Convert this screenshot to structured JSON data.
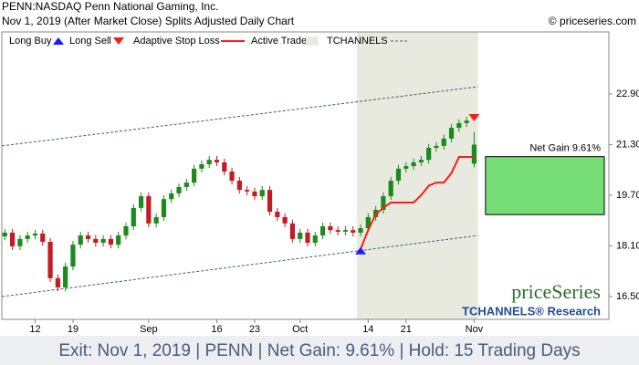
{
  "header": {
    "title": "PENN:NASDAQ Penn National Gaming, Inc.",
    "subtitle": "Nov 1, 2019 (After Market Close)  Splits Adjusted Daily Chart",
    "copyright": "© priceseries.com"
  },
  "legend": {
    "long_buy": "Long Buy",
    "long_sell": "Long Sell",
    "stop_loss": "Adaptive Stop Loss",
    "active_trade": "Active Trade",
    "channels": "TCHANNELS"
  },
  "watermark": {
    "brand": "priceSeries",
    "research": "TCHANNELS® Research"
  },
  "footer": "Exit: Nov 1, 2019 | PENN | Net Gain: 9.61% | Hold: 15 Trading Days",
  "chart_data": {
    "type": "candlestick",
    "xlim": [
      -0.4,
      79.8
    ],
    "xticks": [
      {
        "value": 4,
        "label": "12"
      },
      {
        "value": 9,
        "label": "19"
      },
      {
        "value": 19,
        "label": "Sep"
      },
      {
        "value": 28,
        "label": "16"
      },
      {
        "value": 33,
        "label": "23"
      },
      {
        "value": 39,
        "label": "Oct"
      },
      {
        "value": 48,
        "label": "14"
      },
      {
        "value": 53,
        "label": "21"
      },
      {
        "value": 62,
        "label": "Nov"
      }
    ],
    "ylim": [
      15.78,
      24.86
    ],
    "yticks": [
      {
        "value": 16.5,
        "label": "16.50"
      },
      {
        "value": 18.1,
        "label": "18.10"
      },
      {
        "value": 19.7,
        "label": "19.70"
      },
      {
        "value": 21.3,
        "label": "21.30"
      },
      {
        "value": 22.9,
        "label": "22.90"
      }
    ],
    "up_color": "#1c8a1c",
    "down_color": "#c41a24",
    "open": [
      18.4,
      18.52,
      18.09,
      18.32,
      18.43,
      18.49,
      18.23,
      17.08,
      16.79,
      17.45,
      18.14,
      18.43,
      18.32,
      18.2,
      18.32,
      18.14,
      18.43,
      18.72,
      19.3,
      19.67,
      18.81,
      19.01,
      19.58,
      19.76,
      19.96,
      20.1,
      20.54,
      20.68,
      20.82,
      20.74,
      20.45,
      20.16,
      19.87,
      19.82,
      19.67,
      19.87,
      19.18,
      19.01,
      18.81,
      18.32,
      18.52,
      18.2,
      18.43,
      18.72,
      18.6,
      18.55,
      18.6,
      18.52,
      18.66,
      19.01,
      19.24,
      19.67,
      20.16,
      20.54,
      20.62,
      20.74,
      20.82,
      21.2,
      21.26,
      21.49,
      21.83,
      21.98,
      20.7
    ],
    "high": [
      18.64,
      18.64,
      18.44,
      18.55,
      18.61,
      18.61,
      18.35,
      17.2,
      17.57,
      18.26,
      18.55,
      18.55,
      18.44,
      18.44,
      18.44,
      18.55,
      18.84,
      19.42,
      19.79,
      19.79,
      19.13,
      19.7,
      19.88,
      20.08,
      20.22,
      20.66,
      20.8,
      20.94,
      20.94,
      20.86,
      20.57,
      20.28,
      19.99,
      19.94,
      19.99,
      19.99,
      19.3,
      19.13,
      18.93,
      18.64,
      18.64,
      18.55,
      18.84,
      18.84,
      18.72,
      18.72,
      18.72,
      18.78,
      19.13,
      19.36,
      19.79,
      20.28,
      20.66,
      20.74,
      20.86,
      20.94,
      21.32,
      21.38,
      21.61,
      21.95,
      22.1,
      22.18,
      21.7
    ],
    "low": [
      18.28,
      17.97,
      17.97,
      18.2,
      18.31,
      18.11,
      16.96,
      16.67,
      16.67,
      17.33,
      18.02,
      18.2,
      18.08,
      18.08,
      18.02,
      18.02,
      18.31,
      18.6,
      19.18,
      18.69,
      18.69,
      18.89,
      19.46,
      19.64,
      19.84,
      19.98,
      20.42,
      20.56,
      20.62,
      20.33,
      20.04,
      19.75,
      19.7,
      19.55,
      19.55,
      19.06,
      18.89,
      18.69,
      18.2,
      18.2,
      18.08,
      18.08,
      18.31,
      18.48,
      18.43,
      18.43,
      18.4,
      18.4,
      18.54,
      18.89,
      19.12,
      19.55,
      20.04,
      20.42,
      20.5,
      20.62,
      20.7,
      21.08,
      21.14,
      21.37,
      21.71,
      21.86,
      20.58
    ],
    "close": [
      18.52,
      18.09,
      18.32,
      18.43,
      18.49,
      18.23,
      17.08,
      16.79,
      17.45,
      18.14,
      18.43,
      18.32,
      18.2,
      18.32,
      18.14,
      18.43,
      18.72,
      19.3,
      19.67,
      18.81,
      19.01,
      19.58,
      19.76,
      19.96,
      20.1,
      20.54,
      20.68,
      20.82,
      20.74,
      20.45,
      20.16,
      19.87,
      19.82,
      19.67,
      19.87,
      19.18,
      19.01,
      18.81,
      18.32,
      18.52,
      18.2,
      18.43,
      18.72,
      18.6,
      18.55,
      18.6,
      18.52,
      18.66,
      19.01,
      19.24,
      19.67,
      20.16,
      20.54,
      20.62,
      20.74,
      20.82,
      21.2,
      21.26,
      21.49,
      21.83,
      21.98,
      22.06,
      21.3
    ],
    "stop_loss": {
      "color": "#ff1a1a",
      "values": [
        null,
        null,
        null,
        null,
        null,
        null,
        null,
        null,
        null,
        null,
        null,
        null,
        null,
        null,
        null,
        null,
        null,
        null,
        null,
        null,
        null,
        null,
        null,
        null,
        null,
        null,
        null,
        null,
        null,
        null,
        null,
        null,
        null,
        null,
        null,
        null,
        null,
        null,
        null,
        null,
        null,
        null,
        null,
        null,
        null,
        null,
        null,
        18.0,
        18.6,
        19.1,
        19.3,
        19.47,
        19.47,
        19.47,
        19.47,
        19.7,
        20.0,
        20.1,
        20.1,
        20.4,
        20.91,
        20.91,
        20.91
      ]
    },
    "active_trade": {
      "start": 47,
      "end": 62,
      "color": "#e8eadf"
    },
    "long_buy": {
      "x": 47,
      "price": 17.95,
      "color": "#1a1aff"
    },
    "long_sell": {
      "x": 62,
      "price": 22.15,
      "color": "#ff1a1a"
    },
    "channels": {
      "x": [
        -0.4,
        62.5
      ],
      "upper": [
        21.26,
        23.13
      ],
      "lower": [
        16.5,
        18.43
      ],
      "color": "#4a5a78"
    },
    "net_gain": {
      "label": "Net Gain 9.61%",
      "entry": 19.09,
      "exit": 20.92,
      "x": [
        63.5,
        79.2
      ],
      "color": "#77dd77"
    }
  }
}
